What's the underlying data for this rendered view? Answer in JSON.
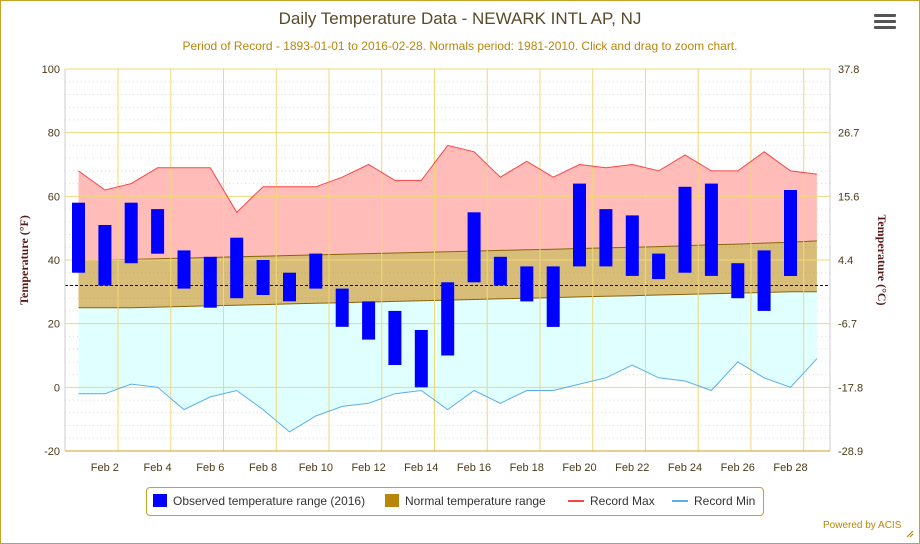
{
  "header": {
    "title": "Daily Temperature Data - NEWARK INTL AP, NJ",
    "subtitle": "Period of Record - 1893-01-01 to 2016-02-28. Normals period: 1981-2010. Click and drag to zoom chart.",
    "menu_icon": "hamburger-menu-icon"
  },
  "footer": {
    "powered_by": "Powered by ACIS"
  },
  "legend": {
    "items": [
      {
        "label": "Observed temperature range (2016)",
        "color": "#0000ff",
        "kind": "box"
      },
      {
        "label": "Normal temperature range",
        "color": "#b8860b",
        "kind": "box"
      },
      {
        "label": "Record Max",
        "color": "#ff4444",
        "kind": "line"
      },
      {
        "label": "Record Min",
        "color": "#5aaeea",
        "kind": "line"
      }
    ]
  },
  "chart_data": {
    "type": "bar",
    "xlabel": "",
    "ylabel": "Temperature (°F)",
    "ylabel_right": "Temperature (°C)",
    "ylim": [
      -20,
      100
    ],
    "y_ticks": [
      -20,
      0,
      20,
      40,
      60,
      80,
      100
    ],
    "y_ticks_right": [
      "-28.9",
      "-17.8",
      "-6.7",
      "4.4",
      "15.6",
      "26.7",
      "37.8"
    ],
    "x_tick_labels": [
      "Feb 2",
      "Feb 4",
      "Feb 6",
      "Feb 8",
      "Feb 10",
      "Feb 12",
      "Feb 14",
      "Feb 16",
      "Feb 18",
      "Feb 20",
      "Feb 22",
      "Feb 24",
      "Feb 26",
      "Feb 28"
    ],
    "x_tick_days": [
      2,
      4,
      6,
      8,
      10,
      12,
      14,
      16,
      18,
      20,
      22,
      24,
      26,
      28
    ],
    "freezing_line": 32,
    "colors": {
      "observed": "#0000ff",
      "normal_fill": "#b8860b",
      "record_max_line": "#ff4444",
      "record_max_fill": "#ffbcb8",
      "record_min_line": "#5aaeea",
      "record_min_fill": "#e0ffff",
      "grid": "#f0d878",
      "freezing": "#00008b"
    },
    "days": [
      1,
      2,
      3,
      4,
      5,
      6,
      7,
      8,
      9,
      10,
      11,
      12,
      13,
      14,
      15,
      16,
      17,
      18,
      19,
      20,
      21,
      22,
      23,
      24,
      25,
      26,
      27,
      28,
      29
    ],
    "observed": {
      "low": [
        36,
        32,
        39,
        42,
        31,
        25,
        28,
        29,
        27,
        31,
        19,
        15,
        7,
        0,
        10,
        33,
        32,
        27,
        19,
        38,
        38,
        35,
        34,
        36,
        35,
        28,
        24,
        35,
        null
      ],
      "high": [
        58,
        51,
        58,
        56,
        43,
        41,
        47,
        40,
        36,
        42,
        31,
        27,
        24,
        18,
        33,
        55,
        41,
        38,
        38,
        64,
        56,
        54,
        42,
        63,
        64,
        39,
        43,
        62,
        null
      ]
    },
    "normal": {
      "low": [
        25,
        25,
        25,
        25.2,
        25.4,
        25.6,
        25.8,
        26,
        26.2,
        26.4,
        26.6,
        26.8,
        27,
        27.2,
        27.4,
        27.6,
        27.8,
        28,
        28.2,
        28.4,
        28.6,
        28.8,
        29,
        29.2,
        29.4,
        29.6,
        29.8,
        30,
        30
      ],
      "high": [
        40,
        40,
        40.2,
        40.4,
        40.6,
        40.8,
        41,
        41.2,
        41.4,
        41.6,
        41.8,
        42,
        42.2,
        42.4,
        42.6,
        42.8,
        43,
        43.2,
        43.4,
        43.6,
        43.8,
        44,
        44.2,
        44.5,
        44.8,
        45,
        45.3,
        45.6,
        46
      ]
    },
    "record_max": [
      68,
      62,
      64,
      69,
      69,
      69,
      55,
      63,
      63,
      63,
      66,
      70,
      65,
      65,
      76,
      74,
      66,
      71,
      66,
      70,
      69,
      70,
      68,
      73,
      68,
      68,
      74,
      68,
      67
    ],
    "record_min": [
      -2,
      -2,
      1,
      0,
      -7,
      -3,
      -1,
      -7,
      -14,
      -9,
      -6,
      -5,
      -2,
      -1,
      -7,
      -1,
      -5,
      -1,
      -1,
      1,
      3,
      7,
      3,
      2,
      -1,
      8,
      3,
      0,
      9
    ]
  }
}
